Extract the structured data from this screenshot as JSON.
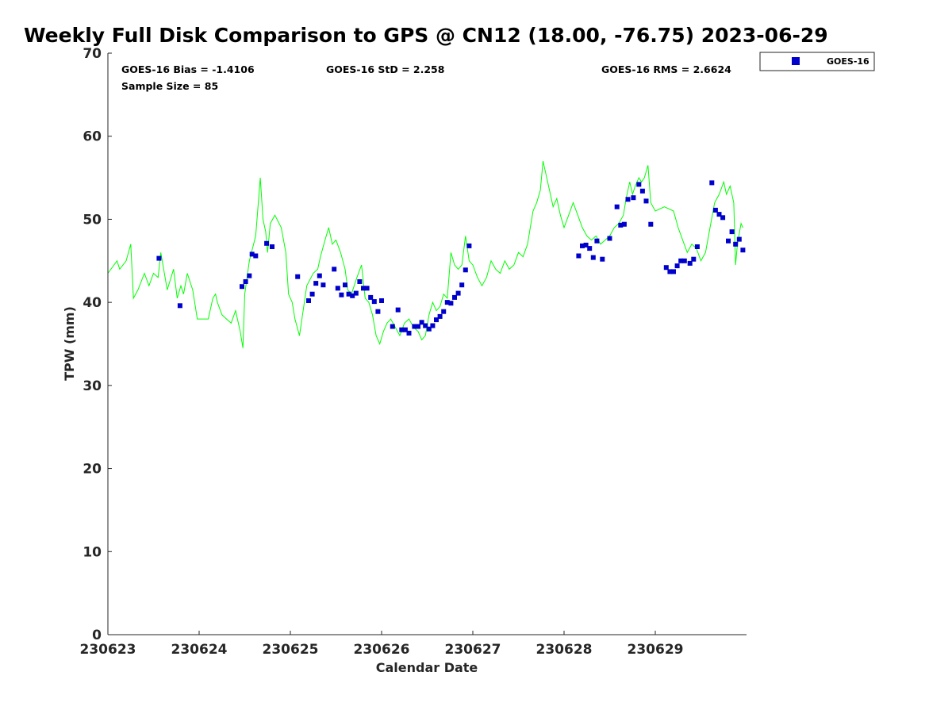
{
  "title": "Weekly Full Disk Comparison to GPS @ CN12 (18.00, -76.75) 2023-06-29",
  "stats": {
    "bias": "GOES-16 Bias = -1.4106",
    "std": "GOES-16 StD = 2.258",
    "rms": "GOES-16 RMS = 2.6624",
    "sample": "Sample Size = 85"
  },
  "legend": {
    "label": "GOES-16"
  },
  "chart_data": {
    "type": "scatter",
    "xlabel": "Calendar Date",
    "ylabel": "TPW (mm)",
    "x_ticks": [
      "230623",
      "230624",
      "230625",
      "230626",
      "230627",
      "230628",
      "230629"
    ],
    "xlim": [
      0,
      7
    ],
    "ylim": [
      0,
      70
    ],
    "y_ticks": [
      0,
      10,
      20,
      30,
      40,
      50,
      60,
      70
    ],
    "colors": {
      "gps": "#00ff00",
      "goes": "#0000cc"
    },
    "series": [
      {
        "type": "line",
        "points": [
          [
            0,
            43.5
          ],
          [
            0.1,
            45.0
          ],
          [
            0.13,
            44.0
          ],
          [
            0.2,
            45.0
          ],
          [
            0.25,
            47.0
          ],
          [
            0.28,
            40.5
          ],
          [
            0.33,
            41.5
          ],
          [
            0.4,
            43.5
          ],
          [
            0.45,
            42.0
          ],
          [
            0.5,
            43.5
          ],
          [
            0.55,
            43.0
          ],
          [
            0.58,
            46.0
          ],
          [
            0.65,
            41.5
          ],
          [
            0.72,
            44.0
          ],
          [
            0.76,
            40.5
          ],
          [
            0.8,
            42.0
          ],
          [
            0.83,
            41.0
          ],
          [
            0.87,
            43.5
          ],
          [
            0.9,
            42.5
          ],
          [
            0.93,
            41.5
          ],
          [
            0.98,
            38.0
          ],
          [
            1.1,
            38.0
          ],
          [
            1.15,
            40.5
          ],
          [
            1.18,
            41.0
          ],
          [
            1.2,
            40.0
          ],
          [
            1.25,
            38.5
          ],
          [
            1.3,
            38.0
          ],
          [
            1.35,
            37.5
          ],
          [
            1.4,
            39.0
          ],
          [
            1.42,
            38.0
          ],
          [
            1.45,
            36.5
          ],
          [
            1.48,
            34.5
          ],
          [
            1.5,
            41.0
          ],
          [
            1.55,
            45.0
          ],
          [
            1.62,
            48.0
          ],
          [
            1.67,
            55.0
          ],
          [
            1.7,
            50.0
          ],
          [
            1.73,
            48.5
          ],
          [
            1.75,
            46.0
          ],
          [
            1.78,
            49.5
          ],
          [
            1.83,
            50.5
          ],
          [
            1.9,
            49.0
          ],
          [
            1.95,
            46.0
          ],
          [
            1.98,
            41.0
          ],
          [
            2.02,
            40.0
          ],
          [
            2.05,
            38.0
          ],
          [
            2.1,
            36.0
          ],
          [
            2.12,
            37.5
          ],
          [
            2.18,
            42.0
          ],
          [
            2.25,
            43.5
          ],
          [
            2.3,
            44.0
          ],
          [
            2.33,
            45.5
          ],
          [
            2.38,
            47.5
          ],
          [
            2.42,
            49.0
          ],
          [
            2.46,
            47.0
          ],
          [
            2.5,
            47.5
          ],
          [
            2.55,
            46.0
          ],
          [
            2.6,
            44.0
          ],
          [
            2.63,
            41.5
          ],
          [
            2.67,
            41.0
          ],
          [
            2.73,
            43.0
          ],
          [
            2.78,
            44.5
          ],
          [
            2.82,
            40.5
          ],
          [
            2.86,
            40.0
          ],
          [
            2.9,
            38.5
          ],
          [
            2.94,
            36.0
          ],
          [
            2.98,
            35.0
          ],
          [
            3.02,
            36.5
          ],
          [
            3.06,
            37.5
          ],
          [
            3.1,
            38.0
          ],
          [
            3.15,
            37.0
          ],
          [
            3.2,
            36.0
          ],
          [
            3.25,
            37.5
          ],
          [
            3.3,
            38.0
          ],
          [
            3.35,
            37.0
          ],
          [
            3.4,
            36.5
          ],
          [
            3.44,
            35.5
          ],
          [
            3.48,
            36.0
          ],
          [
            3.52,
            38.5
          ],
          [
            3.56,
            40.0
          ],
          [
            3.6,
            39.0
          ],
          [
            3.64,
            39.5
          ],
          [
            3.68,
            41.0
          ],
          [
            3.72,
            40.5
          ],
          [
            3.76,
            46.0
          ],
          [
            3.8,
            44.5
          ],
          [
            3.84,
            44.0
          ],
          [
            3.88,
            44.5
          ],
          [
            3.92,
            48.0
          ],
          [
            3.96,
            45.0
          ],
          [
            4.0,
            44.5
          ],
          [
            4.05,
            43.0
          ],
          [
            4.1,
            42.0
          ],
          [
            4.15,
            43.0
          ],
          [
            4.2,
            45.0
          ],
          [
            4.25,
            44.0
          ],
          [
            4.3,
            43.5
          ],
          [
            4.35,
            45.0
          ],
          [
            4.4,
            44.0
          ],
          [
            4.45,
            44.5
          ],
          [
            4.5,
            46.0
          ],
          [
            4.55,
            45.5
          ],
          [
            4.6,
            47.0
          ],
          [
            4.63,
            49.0
          ],
          [
            4.66,
            51.0
          ],
          [
            4.7,
            52.0
          ],
          [
            4.74,
            53.5
          ],
          [
            4.77,
            57.0
          ],
          [
            4.8,
            55.5
          ],
          [
            4.85,
            53.0
          ],
          [
            4.88,
            51.5
          ],
          [
            4.92,
            52.5
          ],
          [
            4.96,
            50.5
          ],
          [
            5.0,
            49.0
          ],
          [
            5.05,
            50.5
          ],
          [
            5.1,
            52.0
          ],
          [
            5.15,
            50.5
          ],
          [
            5.2,
            49.0
          ],
          [
            5.25,
            48.0
          ],
          [
            5.3,
            47.5
          ],
          [
            5.35,
            48.0
          ],
          [
            5.4,
            47.0
          ],
          [
            5.45,
            47.5
          ],
          [
            5.5,
            48.0
          ],
          [
            5.55,
            49.0
          ],
          [
            5.6,
            49.5
          ],
          [
            5.65,
            50.5
          ],
          [
            5.68,
            52.5
          ],
          [
            5.72,
            54.5
          ],
          [
            5.75,
            53.0
          ],
          [
            5.78,
            54.0
          ],
          [
            5.82,
            55.0
          ],
          [
            5.85,
            54.5
          ],
          [
            5.88,
            55.0
          ],
          [
            5.92,
            56.5
          ],
          [
            5.95,
            52.0
          ],
          [
            6.0,
            51.0
          ],
          [
            6.1,
            51.5
          ],
          [
            6.2,
            51.0
          ],
          [
            6.25,
            49.0
          ],
          [
            6.3,
            47.5
          ],
          [
            6.35,
            46.0
          ],
          [
            6.4,
            47.0
          ],
          [
            6.45,
            46.5
          ],
          [
            6.5,
            45.0
          ],
          [
            6.55,
            46.0
          ],
          [
            6.6,
            49.0
          ],
          [
            6.65,
            52.0
          ],
          [
            6.7,
            53.0
          ],
          [
            6.75,
            54.5
          ],
          [
            6.78,
            53.0
          ],
          [
            6.82,
            54.0
          ],
          [
            6.86,
            52.0
          ],
          [
            6.88,
            44.5
          ],
          [
            6.9,
            47.0
          ],
          [
            6.94,
            49.5
          ],
          [
            6.96,
            49.0
          ]
        ]
      },
      {
        "type": "scatter",
        "name": "GOES-16",
        "points": [
          [
            0.56,
            45.3
          ],
          [
            0.79,
            39.6
          ],
          [
            1.47,
            41.9
          ],
          [
            1.51,
            42.5
          ],
          [
            1.55,
            43.2
          ],
          [
            1.58,
            45.8
          ],
          [
            1.62,
            45.6
          ],
          [
            1.74,
            47.1
          ],
          [
            1.8,
            46.7
          ],
          [
            2.08,
            43.1
          ],
          [
            2.2,
            40.2
          ],
          [
            2.24,
            41.0
          ],
          [
            2.28,
            42.3
          ],
          [
            2.32,
            43.2
          ],
          [
            2.36,
            42.1
          ],
          [
            2.48,
            44.0
          ],
          [
            2.52,
            41.7
          ],
          [
            2.56,
            40.9
          ],
          [
            2.6,
            42.1
          ],
          [
            2.64,
            41.0
          ],
          [
            2.68,
            40.8
          ],
          [
            2.72,
            41.1
          ],
          [
            2.76,
            42.5
          ],
          [
            2.8,
            41.7
          ],
          [
            2.84,
            41.7
          ],
          [
            2.88,
            40.6
          ],
          [
            2.92,
            40.1
          ],
          [
            2.96,
            38.9
          ],
          [
            3.0,
            40.2
          ],
          [
            3.12,
            37.1
          ],
          [
            3.18,
            39.1
          ],
          [
            3.22,
            36.7
          ],
          [
            3.26,
            36.7
          ],
          [
            3.3,
            36.3
          ],
          [
            3.36,
            37.1
          ],
          [
            3.4,
            37.1
          ],
          [
            3.44,
            37.6
          ],
          [
            3.48,
            37.2
          ],
          [
            3.52,
            36.8
          ],
          [
            3.56,
            37.2
          ],
          [
            3.6,
            37.9
          ],
          [
            3.64,
            38.3
          ],
          [
            3.68,
            38.9
          ],
          [
            3.72,
            40.0
          ],
          [
            3.76,
            39.9
          ],
          [
            3.8,
            40.6
          ],
          [
            3.84,
            41.1
          ],
          [
            3.88,
            42.1
          ],
          [
            3.92,
            43.9
          ],
          [
            3.96,
            46.8
          ],
          [
            5.16,
            45.6
          ],
          [
            5.2,
            46.8
          ],
          [
            5.24,
            46.9
          ],
          [
            5.28,
            46.5
          ],
          [
            5.32,
            45.4
          ],
          [
            5.36,
            47.4
          ],
          [
            5.42,
            45.2
          ],
          [
            5.5,
            47.7
          ],
          [
            5.58,
            51.5
          ],
          [
            5.62,
            49.3
          ],
          [
            5.66,
            49.4
          ],
          [
            5.7,
            52.4
          ],
          [
            5.76,
            52.6
          ],
          [
            5.82,
            54.2
          ],
          [
            5.86,
            53.4
          ],
          [
            5.9,
            52.2
          ],
          [
            5.95,
            49.4
          ],
          [
            6.12,
            44.2
          ],
          [
            6.16,
            43.7
          ],
          [
            6.2,
            43.7
          ],
          [
            6.24,
            44.4
          ],
          [
            6.28,
            45.0
          ],
          [
            6.32,
            45.0
          ],
          [
            6.38,
            44.7
          ],
          [
            6.42,
            45.2
          ],
          [
            6.46,
            46.7
          ],
          [
            6.62,
            54.4
          ],
          [
            6.66,
            51.1
          ],
          [
            6.7,
            50.6
          ],
          [
            6.74,
            50.2
          ],
          [
            6.8,
            47.4
          ],
          [
            6.84,
            48.5
          ],
          [
            6.88,
            47.0
          ],
          [
            6.92,
            47.6
          ],
          [
            6.96,
            46.3
          ]
        ]
      }
    ]
  }
}
